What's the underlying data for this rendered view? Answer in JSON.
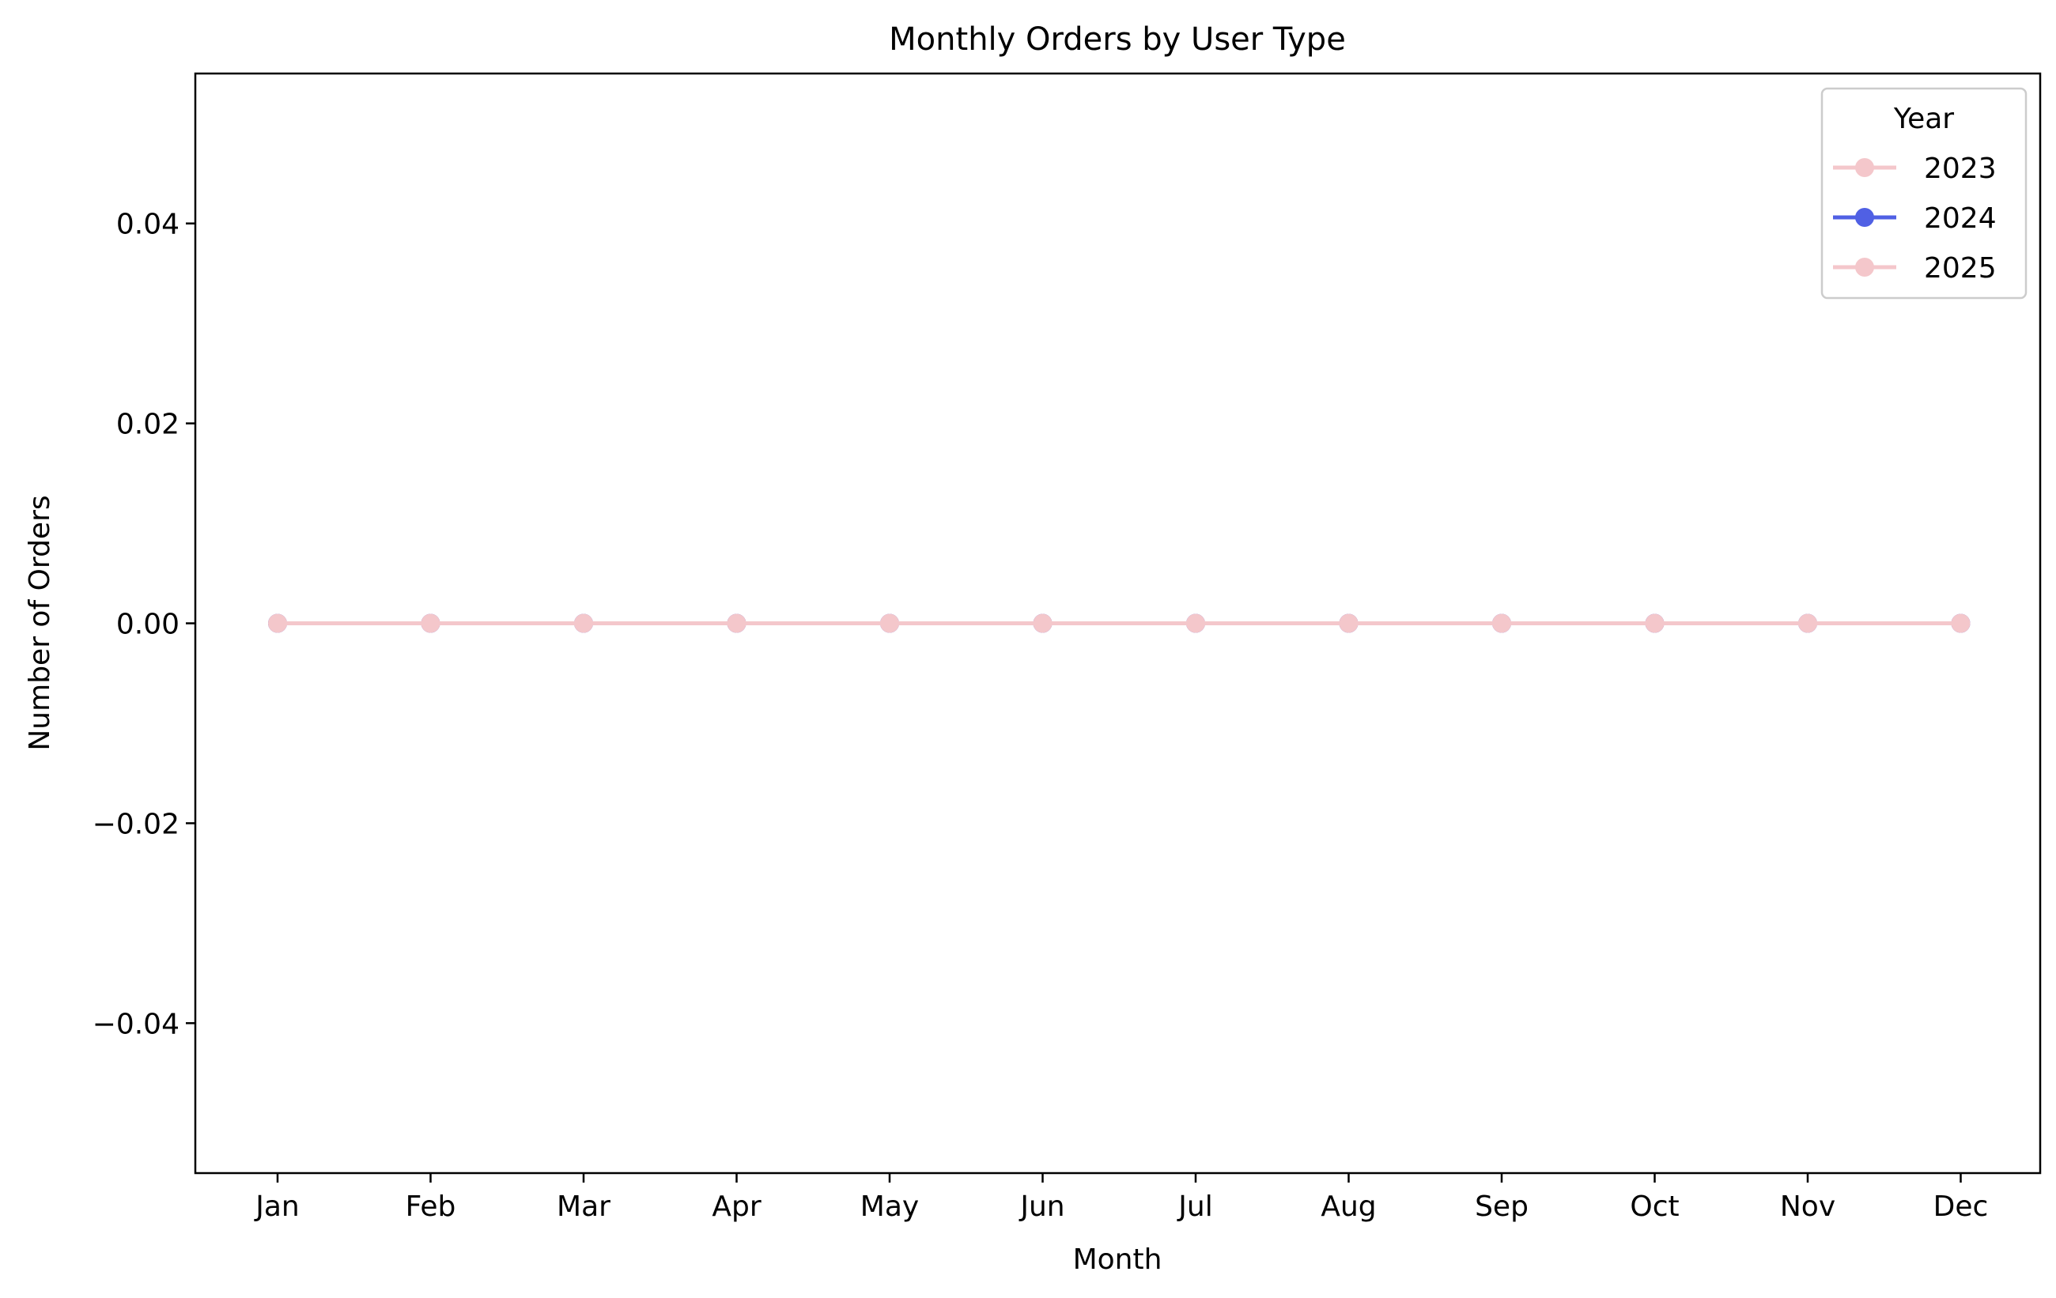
{
  "chart_data": {
    "type": "line",
    "title": "Monthly Orders by User Type",
    "xlabel": "Month",
    "ylabel": "Number of Orders",
    "categories": [
      "Jan",
      "Feb",
      "Mar",
      "Apr",
      "May",
      "Jun",
      "Jul",
      "Aug",
      "Sep",
      "Oct",
      "Nov",
      "Dec"
    ],
    "ylim": [
      -0.055,
      0.055
    ],
    "yticks": [
      -0.04,
      -0.02,
      0.0,
      0.02,
      0.04
    ],
    "ytick_labels": [
      "−0.04",
      "−0.02",
      "0.00",
      "0.02",
      "0.04"
    ],
    "grid": false,
    "legend": {
      "title": "Year",
      "position": "top-right"
    },
    "series": [
      {
        "name": "2023",
        "color": "#f4c7cb",
        "marker": "circle",
        "values": [
          0,
          0,
          0,
          0,
          0,
          0,
          0,
          0,
          0,
          0,
          0,
          0
        ]
      },
      {
        "name": "2024",
        "color": "#5060e4",
        "marker": "circle",
        "values": [
          0,
          0,
          0,
          0,
          0,
          0,
          0,
          0,
          0,
          0,
          0,
          0
        ]
      },
      {
        "name": "2025",
        "color": "#f4c7cb",
        "marker": "circle",
        "values": [
          0,
          0,
          0,
          0,
          0,
          0,
          0,
          0,
          0,
          0,
          0,
          0
        ]
      }
    ]
  }
}
